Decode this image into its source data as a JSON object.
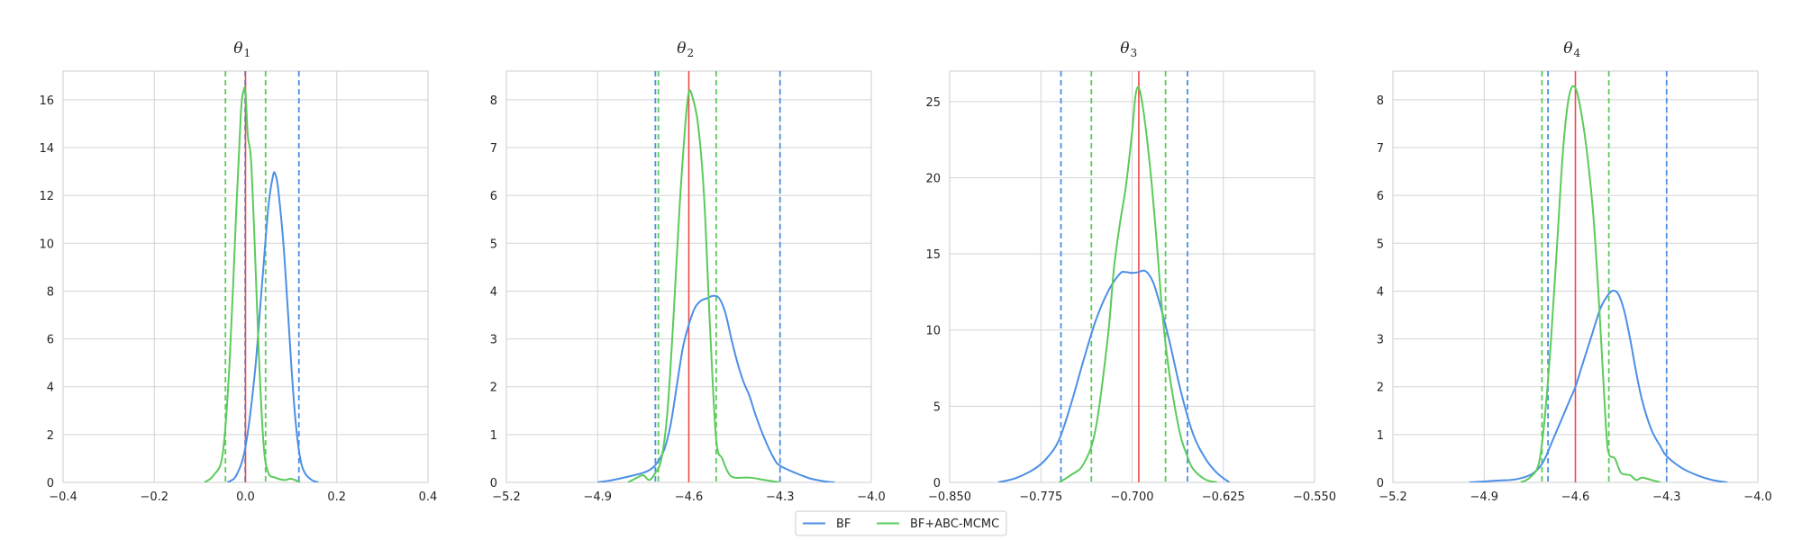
{
  "chart_data": [
    {
      "type": "line",
      "title_symbol": "θ",
      "title_sub": "1",
      "xlim": [
        -0.4,
        0.4
      ],
      "ylim": [
        0,
        17.2
      ],
      "xticks": [
        -0.4,
        -0.2,
        0.0,
        0.2,
        0.4
      ],
      "xtick_labels": [
        "−0.4",
        "−0.2",
        "0.0",
        "0.2",
        "0.4"
      ],
      "yticks": [
        0,
        2,
        4,
        6,
        8,
        10,
        12,
        14,
        16
      ],
      "ytick_labels": [
        "0",
        "2",
        "4",
        "6",
        "8",
        "10",
        "12",
        "14",
        "16"
      ],
      "grid": true,
      "true_value": 0.0,
      "series": [
        {
          "name": "BF",
          "color": "#4c8fe6",
          "ci": [
            -0.0008,
            0.117
          ],
          "x": [
            -0.04,
            -0.02,
            0.0,
            0.02,
            0.035,
            0.05,
            0.06,
            0.065,
            0.072,
            0.085,
            0.1,
            0.11,
            0.12,
            0.13,
            0.145,
            0.16
          ],
          "y": [
            0,
            0.3,
            1.5,
            4.5,
            8.0,
            11.5,
            12.8,
            12.9,
            12.2,
            9.5,
            5.0,
            2.5,
            1.0,
            0.4,
            0.1,
            0
          ]
        },
        {
          "name": "BF+ABC-MCMC",
          "color": "#5bcb5b",
          "ci": [
            -0.044,
            0.044
          ],
          "x": [
            -0.09,
            -0.07,
            -0.05,
            -0.035,
            -0.02,
            -0.01,
            -0.004,
            0.0,
            0.005,
            0.012,
            0.02,
            0.03,
            0.04,
            0.05,
            0.065,
            0.085,
            0.1,
            0.12
          ],
          "y": [
            0,
            0.3,
            1.2,
            5.0,
            11.5,
            15.5,
            16.4,
            16.3,
            14.5,
            13.5,
            10.0,
            5.0,
            1.5,
            0.4,
            0.2,
            0.1,
            0.15,
            0
          ]
        }
      ]
    },
    {
      "type": "line",
      "title_symbol": "θ",
      "title_sub": "2",
      "xlim": [
        -5.2,
        -4.0
      ],
      "ylim": [
        0,
        8.6
      ],
      "xticks": [
        -5.2,
        -4.9,
        -4.6,
        -4.3,
        -4.0
      ],
      "xtick_labels": [
        "−5.2",
        "−4.9",
        "−4.6",
        "−4.3",
        "−4.0"
      ],
      "yticks": [
        0,
        1,
        2,
        3,
        4,
        5,
        6,
        7,
        8
      ],
      "ytick_labels": [
        "0",
        "1",
        "2",
        "3",
        "4",
        "5",
        "6",
        "7",
        "8"
      ],
      "grid": true,
      "true_value": -4.6,
      "series": [
        {
          "name": "BF",
          "color": "#4c8fe6",
          "ci": [
            -4.71,
            -4.3
          ],
          "x": [
            -4.9,
            -4.85,
            -4.8,
            -4.75,
            -4.72,
            -4.7,
            -4.68,
            -4.66,
            -4.64,
            -4.62,
            -4.6,
            -4.58,
            -4.56,
            -4.54,
            -4.52,
            -4.5,
            -4.48,
            -4.46,
            -4.44,
            -4.42,
            -4.4,
            -4.38,
            -4.35,
            -4.32,
            -4.3,
            -4.25,
            -4.2,
            -4.15,
            -4.12
          ],
          "y": [
            0,
            0.05,
            0.12,
            0.2,
            0.3,
            0.45,
            0.7,
            1.2,
            2.0,
            2.8,
            3.3,
            3.65,
            3.8,
            3.85,
            3.9,
            3.85,
            3.55,
            3.0,
            2.5,
            2.1,
            1.8,
            1.4,
            0.9,
            0.5,
            0.35,
            0.2,
            0.08,
            0.02,
            0
          ]
        },
        {
          "name": "BF+ABC-MCMC",
          "color": "#5bcb5b",
          "ci": [
            -4.7,
            -4.51
          ],
          "x": [
            -4.8,
            -4.77,
            -4.75,
            -4.73,
            -4.71,
            -4.69,
            -4.67,
            -4.65,
            -4.63,
            -4.61,
            -4.6,
            -4.59,
            -4.57,
            -4.55,
            -4.53,
            -4.51,
            -4.49,
            -4.47,
            -4.45,
            -4.4,
            -4.35,
            -4.3
          ],
          "y": [
            0,
            0.1,
            0.15,
            0.05,
            0.2,
            0.5,
            1.5,
            3.5,
            5.8,
            7.6,
            8.15,
            8.1,
            7.5,
            6.0,
            3.2,
            0.9,
            0.5,
            0.2,
            0.1,
            0.1,
            0.05,
            0
          ]
        }
      ]
    },
    {
      "type": "line",
      "title_symbol": "θ",
      "title_sub": "3",
      "xlim": [
        -0.85,
        -0.55
      ],
      "ylim": [
        0,
        27.0
      ],
      "xticks": [
        -0.85,
        -0.775,
        -0.7,
        -0.625,
        -0.55
      ],
      "xtick_labels": [
        "−0.850",
        "−0.775",
        "−0.700",
        "−0.625",
        "−0.550"
      ],
      "yticks": [
        0,
        5,
        10,
        15,
        20,
        25
      ],
      "ytick_labels": [
        "0",
        "5",
        "10",
        "15",
        "20",
        "25"
      ],
      "grid": true,
      "true_value": -0.6945,
      "series": [
        {
          "name": "BF",
          "color": "#4c8fe6",
          "ci": [
            -0.7585,
            -0.6545
          ],
          "x": [
            -0.81,
            -0.795,
            -0.78,
            -0.77,
            -0.76,
            -0.75,
            -0.74,
            -0.73,
            -0.72,
            -0.71,
            -0.705,
            -0.7,
            -0.695,
            -0.69,
            -0.685,
            -0.68,
            -0.67,
            -0.66,
            -0.65,
            -0.64,
            -0.63,
            -0.62
          ],
          "y": [
            0,
            0.3,
            0.9,
            1.6,
            2.8,
            5.2,
            8.0,
            10.6,
            12.5,
            13.7,
            13.8,
            13.75,
            13.8,
            13.9,
            13.5,
            12.5,
            9.5,
            6.0,
            3.2,
            1.6,
            0.6,
            0
          ]
        },
        {
          "name": "BF+ABC-MCMC",
          "color": "#5bcb5b",
          "ci": [
            -0.7335,
            -0.6725
          ],
          "x": [
            -0.76,
            -0.75,
            -0.74,
            -0.73,
            -0.72,
            -0.715,
            -0.71,
            -0.705,
            -0.7,
            -0.697,
            -0.694,
            -0.69,
            -0.685,
            -0.68,
            -0.675,
            -0.67,
            -0.665,
            -0.66,
            -0.655,
            -0.65,
            -0.64,
            -0.63
          ],
          "y": [
            0,
            0.5,
            1.2,
            3.5,
            9.5,
            14.0,
            17.0,
            19.5,
            23.0,
            25.5,
            25.8,
            24.0,
            20.5,
            16.0,
            11.0,
            7.5,
            5.0,
            3.0,
            1.8,
            0.9,
            0.2,
            0
          ]
        }
      ]
    },
    {
      "type": "line",
      "title_symbol": "θ",
      "title_sub": "4",
      "xlim": [
        -5.2,
        -4.0
      ],
      "ylim": [
        0,
        8.6
      ],
      "xticks": [
        -5.2,
        -4.9,
        -4.6,
        -4.3,
        -4.0
      ],
      "xtick_labels": [
        "−5.2",
        "−4.9",
        "−4.6",
        "−4.3",
        "−4.0"
      ],
      "yticks": [
        0,
        1,
        2,
        3,
        4,
        5,
        6,
        7,
        8
      ],
      "ytick_labels": [
        "0",
        "1",
        "2",
        "3",
        "4",
        "5",
        "6",
        "7",
        "8"
      ],
      "grid": true,
      "true_value": -4.6,
      "series": [
        {
          "name": "BF",
          "color": "#4c8fe6",
          "ci": [
            -4.69,
            -4.3
          ],
          "x": [
            -4.95,
            -4.9,
            -4.85,
            -4.8,
            -4.75,
            -4.72,
            -4.7,
            -4.68,
            -4.65,
            -4.62,
            -4.6,
            -4.58,
            -4.55,
            -4.52,
            -4.5,
            -4.48,
            -4.46,
            -4.44,
            -4.42,
            -4.4,
            -4.38,
            -4.35,
            -4.32,
            -4.3,
            -4.25,
            -4.2,
            -4.15,
            -4.1
          ],
          "y": [
            0,
            0.02,
            0.04,
            0.06,
            0.15,
            0.3,
            0.5,
            0.8,
            1.25,
            1.7,
            2.0,
            2.4,
            3.0,
            3.6,
            3.85,
            4.0,
            3.95,
            3.6,
            3.0,
            2.3,
            1.7,
            1.1,
            0.75,
            0.55,
            0.3,
            0.15,
            0.05,
            0
          ]
        },
        {
          "name": "BF+ABC-MCMC",
          "color": "#5bcb5b",
          "ci": [
            -4.71,
            -4.49
          ],
          "x": [
            -4.78,
            -4.75,
            -4.72,
            -4.7,
            -4.68,
            -4.66,
            -4.64,
            -4.62,
            -4.6,
            -4.58,
            -4.56,
            -4.54,
            -4.52,
            -4.5,
            -4.49,
            -4.47,
            -4.45,
            -4.42,
            -4.4,
            -4.38,
            -4.35,
            -4.32
          ],
          "y": [
            0,
            0.1,
            0.4,
            1.4,
            3.0,
            5.0,
            7.0,
            8.1,
            8.25,
            7.7,
            6.8,
            5.5,
            3.5,
            1.2,
            0.6,
            0.5,
            0.2,
            0.15,
            0.05,
            0.1,
            0.05,
            0
          ]
        }
      ]
    }
  ],
  "legend": {
    "placement": "bottom-center",
    "entries": [
      {
        "label": "BF",
        "color": "#4c8fe6"
      },
      {
        "label": "BF+ABC-MCMC",
        "color": "#5bcb5b"
      }
    ]
  },
  "colors": {
    "true_value_line": "#f04a4a",
    "grid": "#d3d3d3",
    "frame": "#cccccc"
  }
}
